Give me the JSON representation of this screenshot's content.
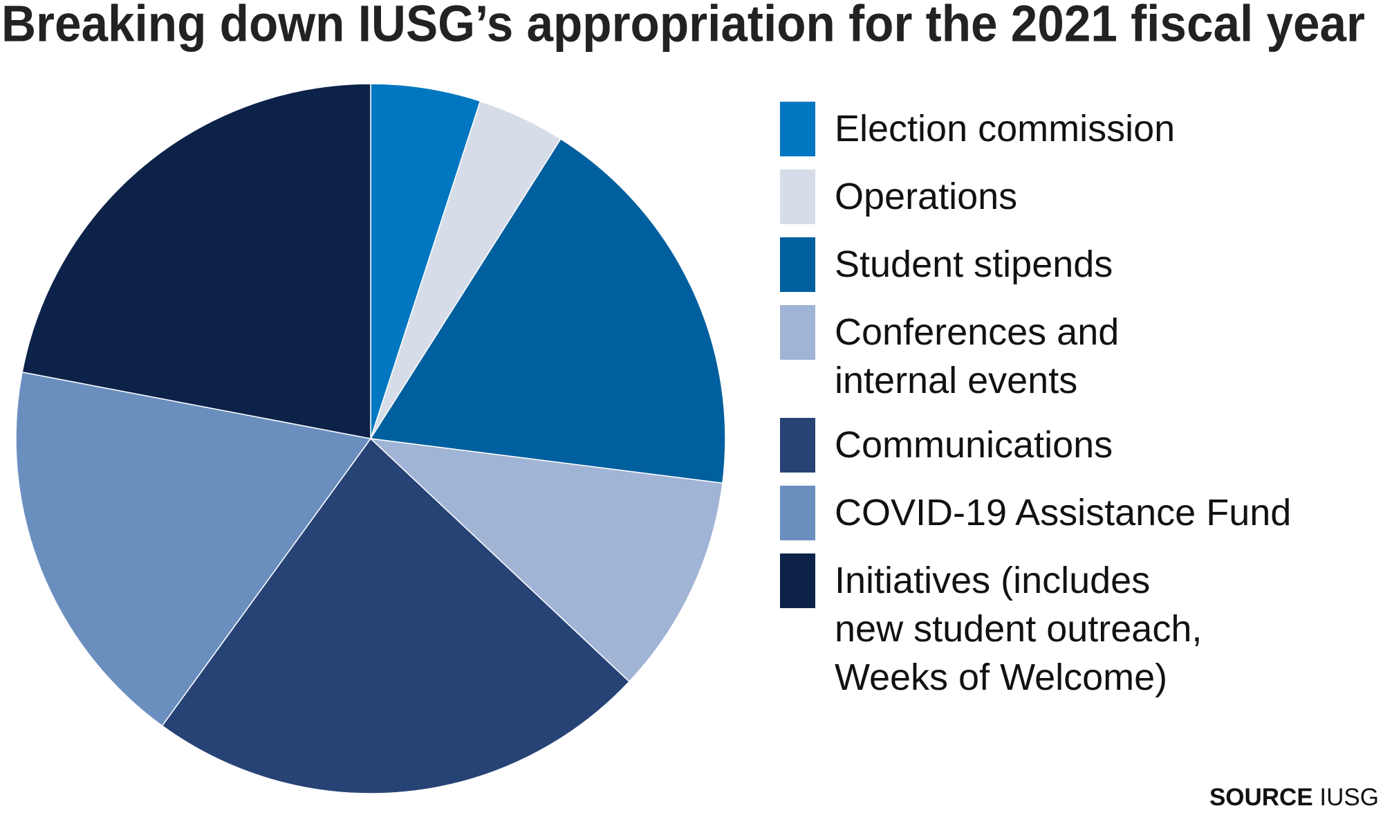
{
  "chart_data": {
    "type": "pie",
    "title": "Breaking down IUSG’s appropriation for the 2021 fiscal year",
    "categories": [
      "Election commission",
      "Operations",
      "Student stipends",
      "Conferences and\ninternal events",
      "Communications",
      "COVID-19 Assistance Fund",
      "Initiatives (includes\nnew student outreach,\nWeeks of Welcome)"
    ],
    "values": [
      5,
      4,
      18,
      10,
      23,
      18,
      22
    ],
    "colors": [
      "#0077c0",
      "#d6dde9",
      "#005f9e",
      "#a0b4d5",
      "#274376",
      "#6a8fbf",
      "#0c2249"
    ],
    "source_label": "SOURCE",
    "source": "IUSG"
  }
}
